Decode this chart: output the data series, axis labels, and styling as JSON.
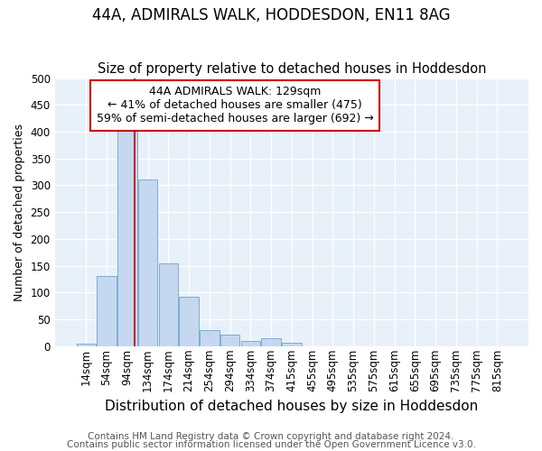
{
  "title": "44A, ADMIRALS WALK, HODDESDON, EN11 8AG",
  "subtitle": "Size of property relative to detached houses in Hoddesdon",
  "xlabel": "Distribution of detached houses by size in Hoddesdon",
  "ylabel": "Number of detached properties",
  "categories": [
    "14sqm",
    "54sqm",
    "94sqm",
    "134sqm",
    "174sqm",
    "214sqm",
    "254sqm",
    "294sqm",
    "334sqm",
    "374sqm",
    "415sqm",
    "455sqm",
    "495sqm",
    "535sqm",
    "575sqm",
    "615sqm",
    "655sqm",
    "695sqm",
    "735sqm",
    "775sqm",
    "815sqm"
  ],
  "values": [
    5,
    130,
    405,
    310,
    155,
    92,
    30,
    22,
    9,
    14,
    6,
    0,
    0,
    0,
    0,
    0,
    0,
    0,
    0,
    0,
    0
  ],
  "bar_color": "#c5d8f0",
  "bar_edge_color": "#7aadd4",
  "bg_color": "#e8f0fa",
  "grid_color": "#ffffff",
  "vline_color": "#cc0000",
  "annotation_text": "44A ADMIRALS WALK: 129sqm\n← 41% of detached houses are smaller (475)\n59% of semi-detached houses are larger (692) →",
  "annotation_box_color": "#ffffff",
  "annotation_box_edge": "#cc0000",
  "footnote1": "Contains HM Land Registry data © Crown copyright and database right 2024.",
  "footnote2": "Contains public sector information licensed under the Open Government Licence v3.0.",
  "ylim": [
    0,
    500
  ],
  "yticks": [
    0,
    50,
    100,
    150,
    200,
    250,
    300,
    350,
    400,
    450,
    500
  ],
  "title_fontsize": 12,
  "subtitle_fontsize": 10.5,
  "xlabel_fontsize": 11,
  "ylabel_fontsize": 9,
  "tick_fontsize": 8.5,
  "annotation_fontsize": 9,
  "footnote_fontsize": 7.5
}
